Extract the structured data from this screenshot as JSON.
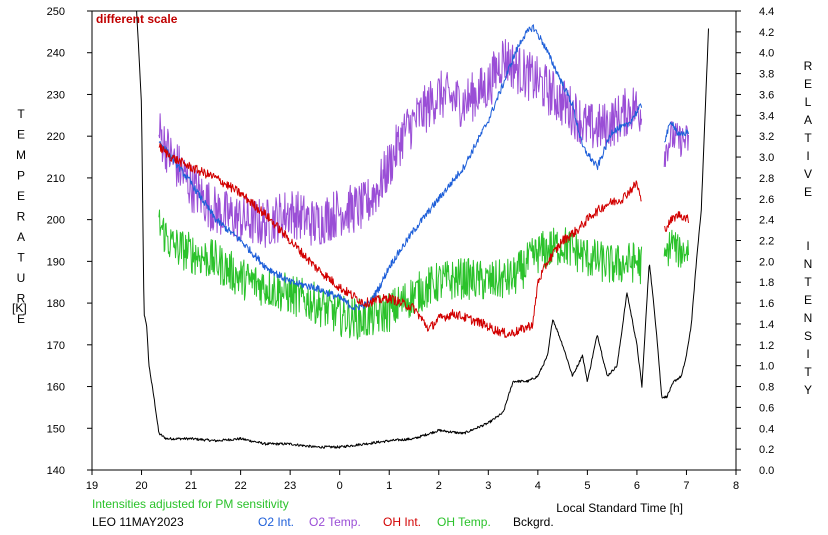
{
  "chart_data": {
    "type": "line",
    "title": "LEO 11MAY2023",
    "note_scale": "different scale",
    "note_sensitivity": "Intensities adjusted for PM sensitivity",
    "xlabel": "Local Standard Time [h]",
    "ylabel_left": "TEMPERATURE",
    "ylabel_left_unit": "[K]",
    "ylabel_right": "RELATIVE  INTENSITY",
    "x_range": [
      19,
      32
    ],
    "x_tick_values": [
      19,
      20,
      21,
      22,
      23,
      24,
      25,
      26,
      27,
      28,
      29,
      30,
      31,
      32
    ],
    "x_tick_labels": [
      "19",
      "20",
      "21",
      "22",
      "23",
      "0",
      "1",
      "2",
      "3",
      "4",
      "5",
      "6",
      "7",
      "8"
    ],
    "ylim_left": [
      140,
      250
    ],
    "y_left_ticks": [
      140,
      150,
      160,
      170,
      180,
      190,
      200,
      210,
      220,
      230,
      240,
      250
    ],
    "ylim_right": [
      0.0,
      4.4
    ],
    "y_right_ticks": [
      "0.0",
      "0.2",
      "0.4",
      "0.6",
      "0.8",
      "1.0",
      "1.2",
      "1.4",
      "1.6",
      "1.8",
      "2.0",
      "2.2",
      "2.4",
      "2.6",
      "2.8",
      "3.0",
      "3.2",
      "3.4",
      "3.6",
      "3.8",
      "4.0",
      "4.2",
      "4.4"
    ],
    "grid": false,
    "legend_position": "bottom",
    "colors": {
      "O2 Int.": "#1e5fd9",
      "O2 Temp.": "#9a4ed6",
      "OH Int.": "#d20000",
      "OH Temp.": "#2bc22b",
      "Bckgrd.": "#000000",
      "scale_note": "#c00000",
      "sensitivity_note": "#2bc22b"
    },
    "series": [
      {
        "name": "O2 Int.",
        "axis": "right",
        "noise": 0.035,
        "x": [
          20.35,
          20.6,
          21.0,
          21.5,
          22.0,
          22.5,
          23.0,
          23.5,
          24.0,
          24.3,
          24.6,
          24.8,
          25.0,
          25.5,
          26.0,
          26.5,
          27.0,
          27.3,
          27.5,
          27.7,
          27.9,
          28.1,
          28.4,
          28.7,
          28.9,
          29.2,
          29.5,
          29.8,
          30.1
        ],
        "y": [
          3.15,
          3.0,
          2.75,
          2.4,
          2.2,
          1.95,
          1.8,
          1.75,
          1.65,
          1.55,
          1.6,
          1.75,
          1.95,
          2.3,
          2.6,
          2.9,
          3.35,
          3.7,
          3.95,
          4.15,
          4.25,
          4.1,
          3.8,
          3.5,
          3.1,
          2.9,
          3.25,
          3.3,
          3.5
        ]
      },
      {
        "name": "O2 Int. (late)",
        "axis": "right",
        "noise": 0.035,
        "x": [
          30.55,
          30.7,
          30.85,
          31.05
        ],
        "y": [
          3.15,
          3.35,
          3.2,
          3.25
        ]
      },
      {
        "name": "O2 Temp.",
        "axis": "left",
        "noise": 6,
        "x": [
          20.35,
          20.6,
          21.0,
          21.5,
          22.0,
          22.5,
          23.0,
          23.5,
          24.0,
          24.5,
          24.8,
          25.0,
          25.3,
          25.7,
          26.0,
          26.5,
          27.0,
          27.3,
          27.6,
          28.0,
          28.3,
          28.7,
          29.0,
          29.3,
          29.6,
          29.9,
          30.1
        ],
        "y": [
          221,
          215,
          208,
          202,
          200,
          199,
          202,
          199,
          202,
          203,
          208,
          213,
          221,
          226,
          230,
          228,
          232,
          239,
          236,
          233,
          230,
          226,
          222,
          222,
          224,
          227,
          226
        ]
      },
      {
        "name": "O2 Temp. (late)",
        "axis": "left",
        "noise": 4,
        "x": [
          30.55,
          30.7,
          30.85,
          31.05
        ],
        "y": [
          216,
          220,
          219,
          219
        ]
      },
      {
        "name": "OH Int.",
        "axis": "right",
        "noise": 0.045,
        "x": [
          20.35,
          20.6,
          21.0,
          21.5,
          22.0,
          22.5,
          23.0,
          23.5,
          24.0,
          24.5,
          25.0,
          25.5,
          25.8,
          26.0,
          26.3,
          26.6,
          26.9,
          27.1,
          27.4,
          27.7,
          27.9,
          28.0,
          28.2,
          28.5,
          28.8,
          29.1,
          29.4,
          29.7,
          30.0,
          30.1
        ],
        "y": [
          3.1,
          3.0,
          2.9,
          2.8,
          2.65,
          2.45,
          2.2,
          1.95,
          1.75,
          1.6,
          1.65,
          1.55,
          1.35,
          1.45,
          1.5,
          1.45,
          1.4,
          1.35,
          1.3,
          1.35,
          1.4,
          1.8,
          2.0,
          2.2,
          2.3,
          2.45,
          2.55,
          2.6,
          2.75,
          2.55
        ]
      },
      {
        "name": "OH Int. (late)",
        "axis": "right",
        "noise": 0.04,
        "x": [
          30.55,
          30.7,
          30.85,
          31.05
        ],
        "y": [
          2.3,
          2.4,
          2.45,
          2.4
        ]
      },
      {
        "name": "OH Temp.",
        "axis": "left",
        "noise": 5,
        "x": [
          20.35,
          20.6,
          21.0,
          21.5,
          22.0,
          22.5,
          23.0,
          23.5,
          24.0,
          24.5,
          25.0,
          25.5,
          26.0,
          26.5,
          27.0,
          27.5,
          28.0,
          28.5,
          29.0,
          29.5,
          30.0,
          30.1
        ],
        "y": [
          199,
          194,
          192,
          190,
          186,
          184,
          182,
          180,
          177,
          176,
          178,
          182,
          185,
          186,
          185,
          186,
          192,
          194,
          191,
          189,
          190,
          189
        ]
      },
      {
        "name": "OH Temp. (late)",
        "axis": "left",
        "noise": 4,
        "x": [
          30.55,
          30.7,
          30.85,
          31.05
        ],
        "y": [
          190,
          195,
          192,
          193
        ]
      },
      {
        "name": "Bckgrd.",
        "axis": "right",
        "noise": 0.012,
        "x": [
          19.9,
          20.0,
          20.05,
          20.1,
          20.15,
          20.25,
          20.35,
          20.5,
          21.0,
          21.5,
          22.0,
          22.5,
          23.0,
          23.5,
          24.0,
          24.5,
          25.0,
          25.5,
          26.0,
          26.5,
          27.0,
          27.3,
          27.5,
          27.8,
          28.0,
          28.2,
          28.3,
          28.5,
          28.7,
          28.9,
          29.0,
          29.2,
          29.4,
          29.6,
          29.8,
          30.0,
          30.1,
          30.25,
          30.4,
          30.5,
          30.6,
          30.75,
          30.9,
          31.0,
          31.1,
          31.2,
          31.3,
          31.45
        ],
        "y": [
          4.4,
          3.5,
          1.5,
          1.4,
          1.0,
          0.7,
          0.35,
          0.3,
          0.3,
          0.28,
          0.3,
          0.25,
          0.25,
          0.22,
          0.22,
          0.25,
          0.28,
          0.3,
          0.38,
          0.35,
          0.45,
          0.55,
          0.85,
          0.85,
          0.9,
          1.1,
          1.45,
          1.2,
          0.9,
          1.1,
          0.85,
          1.3,
          0.9,
          1.0,
          1.7,
          1.2,
          0.8,
          2.0,
          1.3,
          0.7,
          0.7,
          0.85,
          0.9,
          1.1,
          1.4,
          2.0,
          2.5,
          4.3
        ]
      }
    ]
  }
}
